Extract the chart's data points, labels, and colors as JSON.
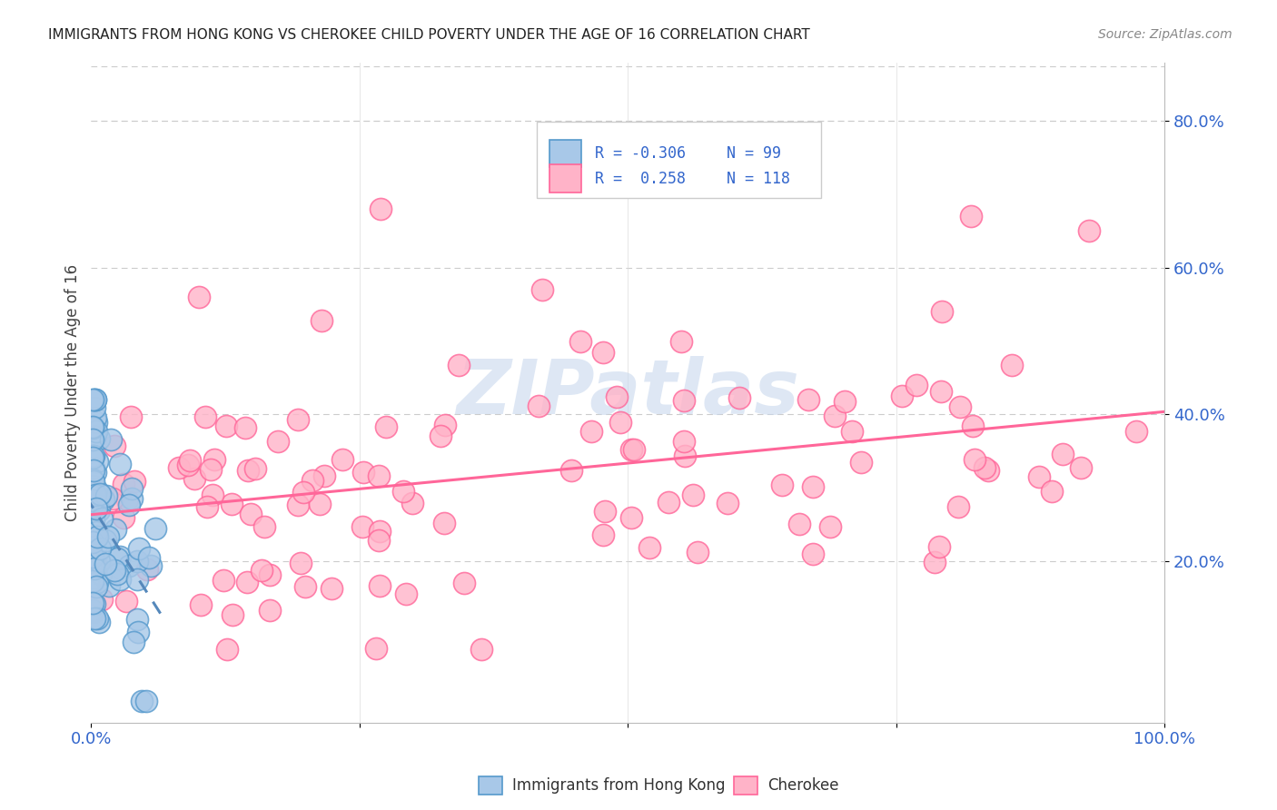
{
  "title": "IMMIGRANTS FROM HONG KONG VS CHEROKEE CHILD POVERTY UNDER THE AGE OF 16 CORRELATION CHART",
  "source": "Source: ZipAtlas.com",
  "ylabel": "Child Poverty Under the Age of 16",
  "ytick_labels": [
    "20.0%",
    "40.0%",
    "60.0%",
    "80.0%"
  ],
  "ytick_values": [
    0.2,
    0.4,
    0.6,
    0.8
  ],
  "xlim": [
    0.0,
    1.0
  ],
  "ylim": [
    -0.02,
    0.88
  ],
  "blue_scatter_color": "#a8c8e8",
  "blue_edge_color": "#5599cc",
  "pink_scatter_color": "#ffb3c8",
  "pink_edge_color": "#ff6699",
  "trend_blue_color": "#5588bb",
  "trend_pink_color": "#ff6699",
  "grid_color": "#cccccc",
  "background_color": "#ffffff",
  "title_color": "#222222",
  "source_color": "#888888",
  "tick_color": "#3366cc",
  "ylabel_color": "#444444",
  "watermark_color": "#c8d8ee",
  "legend_border_color": "#cccccc",
  "legend_text_color": "#3366cc"
}
